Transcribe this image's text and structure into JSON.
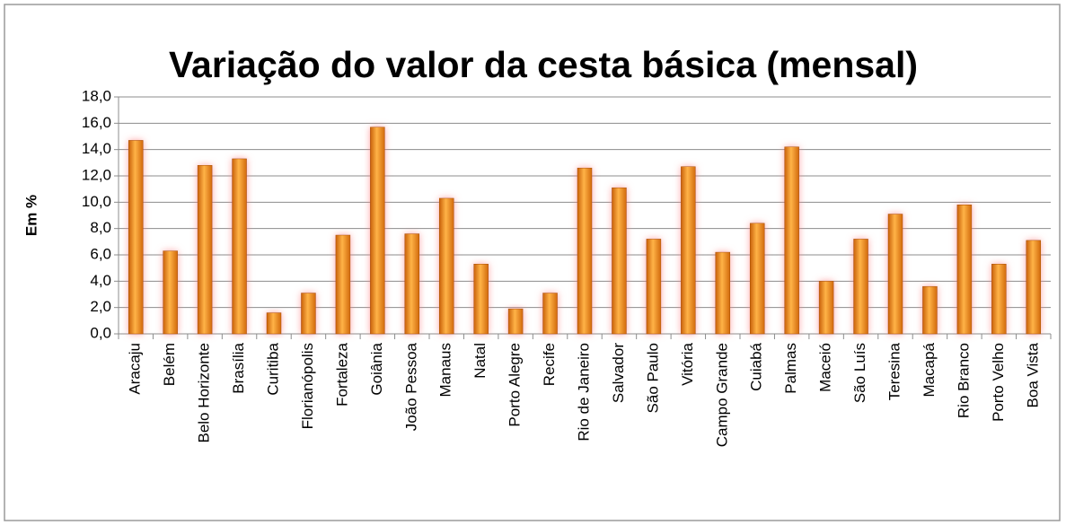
{
  "chart_data": {
    "type": "bar",
    "title": "Variação do valor da cesta básica (mensal)",
    "y_axis_label": "Em %",
    "categories": [
      "Aracaju",
      "Belém",
      "Belo Horizonte",
      "Brasília",
      "Curitiba",
      "Florianópolis",
      "Fortaleza",
      "Goiânia",
      "João Pessoa",
      "Manaus",
      "Natal",
      "Porto Alegre",
      "Recife",
      "Rio de Janeiro",
      "Salvador",
      "São Paulo",
      "Vitória",
      "Campo Grande",
      "Cuiabá",
      "Palmas",
      "Maceió",
      "São Luís",
      "Teresina",
      "Macapá",
      "Rio Branco",
      "Porto Velho",
      "Boa Vista"
    ],
    "values": [
      14.7,
      6.3,
      12.8,
      13.3,
      1.6,
      3.1,
      7.5,
      15.7,
      7.6,
      10.3,
      5.3,
      1.9,
      3.1,
      12.6,
      11.1,
      7.2,
      12.7,
      6.2,
      8.4,
      14.2,
      4.0,
      7.2,
      9.1,
      3.6,
      9.8,
      5.3,
      7.1
    ],
    "color": "#f7931e",
    "ylim": [
      0,
      18
    ],
    "yticks": [
      {
        "value": 0,
        "label": "0,0"
      },
      {
        "value": 2,
        "label": "2,0"
      },
      {
        "value": 4,
        "label": "4,0"
      },
      {
        "value": 6,
        "label": "6,0"
      },
      {
        "value": 8,
        "label": "8,0"
      },
      {
        "value": 10,
        "label": "10,0"
      },
      {
        "value": 12,
        "label": "12,0"
      },
      {
        "value": 14,
        "label": "14,0"
      },
      {
        "value": 16,
        "label": "16,0"
      },
      {
        "value": 18,
        "label": "18,0"
      }
    ],
    "grid": true
  }
}
